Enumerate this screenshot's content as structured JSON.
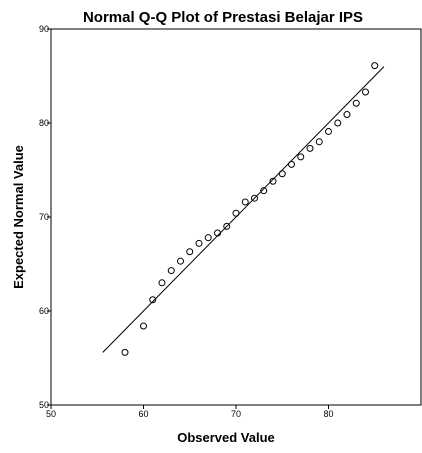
{
  "chart_data": {
    "type": "scatter",
    "title": "Normal Q-Q Plot of Prestasi Belajar IPS",
    "xlabel": "Observed Value",
    "ylabel": "Expected Normal Value",
    "xlim": [
      50,
      90
    ],
    "ylim": [
      50,
      90
    ],
    "xticks": [
      50,
      60,
      70,
      80
    ],
    "yticks": [
      50,
      60,
      70,
      80,
      90
    ],
    "grid": false,
    "marker": "open-circle",
    "reference_line": {
      "x": [
        55.6,
        86.0
      ],
      "y": [
        55.6,
        86.0
      ]
    },
    "points": [
      {
        "x": 58,
        "y": 55.6
      },
      {
        "x": 60,
        "y": 58.4
      },
      {
        "x": 61,
        "y": 61.2
      },
      {
        "x": 62,
        "y": 63.0
      },
      {
        "x": 63,
        "y": 64.3
      },
      {
        "x": 64,
        "y": 65.3
      },
      {
        "x": 65,
        "y": 66.3
      },
      {
        "x": 66,
        "y": 67.2
      },
      {
        "x": 67,
        "y": 67.8
      },
      {
        "x": 68,
        "y": 68.3
      },
      {
        "x": 69,
        "y": 69.0
      },
      {
        "x": 70,
        "y": 70.4
      },
      {
        "x": 71,
        "y": 71.6
      },
      {
        "x": 72,
        "y": 72.0
      },
      {
        "x": 73,
        "y": 72.8
      },
      {
        "x": 74,
        "y": 73.8
      },
      {
        "x": 75,
        "y": 74.6
      },
      {
        "x": 76,
        "y": 75.6
      },
      {
        "x": 77,
        "y": 76.4
      },
      {
        "x": 78,
        "y": 77.3
      },
      {
        "x": 79,
        "y": 78.0
      },
      {
        "x": 80,
        "y": 79.1
      },
      {
        "x": 81,
        "y": 80.0
      },
      {
        "x": 82,
        "y": 80.9
      },
      {
        "x": 83,
        "y": 82.1
      },
      {
        "x": 84,
        "y": 83.3
      },
      {
        "x": 85,
        "y": 86.1
      }
    ]
  }
}
